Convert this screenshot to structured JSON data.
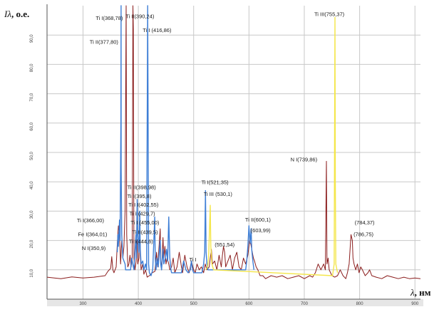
{
  "chart_data": {
    "type": "line",
    "ylabel_symbol": "Iλ",
    "ylabel_unit": ", о.е.",
    "xlabel_symbol": "λ",
    "xlabel_unit": ", нм",
    "xlim": [
      235,
      910
    ],
    "ylim": [
      0,
      100
    ],
    "x_ticks": [
      300,
      400,
      500,
      600,
      700,
      800,
      900
    ],
    "y_ticks": [
      10,
      20,
      30,
      40,
      50,
      60,
      70,
      80,
      90
    ],
    "y_tick_labels": [
      "10,0",
      "20,0",
      "30,0",
      "40,0",
      "50,0",
      "60,0",
      "70,0",
      "80,0",
      "90,0"
    ],
    "grid": true,
    "colors": {
      "background": "#ffffff",
      "grid": "#c8c8c8",
      "axis": "#555555",
      "bottom_band": "#e6e6e6"
    },
    "series": [
      {
        "color": "#8b1d1d",
        "points": [
          [
            235,
            7.5
          ],
          [
            260,
            7
          ],
          [
            280,
            7.6
          ],
          [
            300,
            7.2
          ],
          [
            320,
            7.5
          ],
          [
            340,
            8
          ],
          [
            345,
            9.5
          ],
          [
            350,
            10.5
          ],
          [
            352,
            14.5
          ],
          [
            354,
            10
          ],
          [
            356,
            9
          ],
          [
            360,
            11
          ],
          [
            362,
            19
          ],
          [
            364,
            25
          ],
          [
            366,
            22
          ],
          [
            368,
            12
          ],
          [
            370,
            20
          ],
          [
            372,
            14
          ],
          [
            374,
            18
          ],
          [
            376,
            30
          ],
          [
            377.8,
            96
          ],
          [
            378,
            100
          ],
          [
            379,
            22
          ],
          [
            381,
            11
          ],
          [
            383,
            12
          ],
          [
            385,
            15
          ],
          [
            387,
            11
          ],
          [
            389,
            14
          ],
          [
            390.2,
            100
          ],
          [
            391,
            92
          ],
          [
            392,
            14
          ],
          [
            394,
            10
          ],
          [
            396,
            13
          ],
          [
            398,
            20
          ],
          [
            399,
            12
          ],
          [
            401,
            14
          ],
          [
            402.6,
            28
          ],
          [
            403.5,
            15
          ],
          [
            405,
            10
          ],
          [
            408,
            12
          ],
          [
            410,
            8.5
          ],
          [
            413,
            10
          ],
          [
            416,
            7.5
          ],
          [
            420,
            8
          ],
          [
            425,
            9
          ],
          [
            430,
            9.5
          ],
          [
            433,
            16
          ],
          [
            435,
            11
          ],
          [
            439.5,
            24
          ],
          [
            440.5,
            13
          ],
          [
            442,
            10
          ],
          [
            444.6,
            21
          ],
          [
            446,
            14
          ],
          [
            448,
            18
          ],
          [
            450,
            12
          ],
          [
            452,
            14
          ],
          [
            455,
            12
          ],
          [
            457,
            10
          ],
          [
            460,
            11
          ],
          [
            463,
            14
          ],
          [
            466,
            9
          ],
          [
            470,
            11
          ],
          [
            474,
            16
          ],
          [
            478,
            11
          ],
          [
            480,
            9
          ],
          [
            484,
            15
          ],
          [
            488,
            11
          ],
          [
            492,
            9
          ],
          [
            496,
            13
          ],
          [
            500,
            10
          ],
          [
            503,
            9
          ],
          [
            506,
            12
          ],
          [
            510,
            10
          ],
          [
            514,
            11
          ],
          [
            518,
            9
          ],
          [
            521,
            12
          ],
          [
            524,
            10
          ],
          [
            528,
            11
          ],
          [
            532,
            17
          ],
          [
            534,
            12
          ],
          [
            538,
            13
          ],
          [
            542,
            10
          ],
          [
            546,
            15
          ],
          [
            550,
            11
          ],
          [
            552,
            15
          ],
          [
            554,
            18
          ],
          [
            556,
            16
          ],
          [
            558,
            11
          ],
          [
            562,
            13
          ],
          [
            566,
            15
          ],
          [
            570,
            10
          ],
          [
            574,
            14
          ],
          [
            578,
            16
          ],
          [
            582,
            11
          ],
          [
            586,
            10
          ],
          [
            590,
            14
          ],
          [
            594,
            12
          ],
          [
            598,
            15
          ],
          [
            600,
            18
          ],
          [
            601,
            20
          ],
          [
            603,
            19
          ],
          [
            606,
            16
          ],
          [
            608,
            14
          ],
          [
            610,
            13
          ],
          [
            613,
            11
          ],
          [
            616,
            10
          ],
          [
            620,
            8
          ],
          [
            625,
            8
          ],
          [
            630,
            7
          ],
          [
            640,
            8
          ],
          [
            650,
            7.5
          ],
          [
            660,
            8
          ],
          [
            670,
            7
          ],
          [
            680,
            7.5
          ],
          [
            690,
            8
          ],
          [
            700,
            7
          ],
          [
            710,
            8
          ],
          [
            715,
            7.5
          ],
          [
            720,
            9
          ],
          [
            725,
            12
          ],
          [
            730,
            10
          ],
          [
            735,
            12
          ],
          [
            738,
            10
          ],
          [
            739.9,
            47
          ],
          [
            741,
            12
          ],
          [
            743,
            14
          ],
          [
            745,
            10
          ],
          [
            750,
            8
          ],
          [
            755,
            7.5
          ],
          [
            760,
            8
          ],
          [
            765,
            10
          ],
          [
            770,
            8
          ],
          [
            775,
            7
          ],
          [
            778,
            9
          ],
          [
            781,
            12
          ],
          [
            784.4,
            22
          ],
          [
            786.8,
            20
          ],
          [
            788,
            14
          ],
          [
            790,
            12
          ],
          [
            793,
            10
          ],
          [
            796,
            12
          ],
          [
            799,
            9
          ],
          [
            802,
            11
          ],
          [
            805,
            10
          ],
          [
            810,
            8
          ],
          [
            815,
            9
          ],
          [
            818,
            10
          ],
          [
            822,
            8
          ],
          [
            830,
            7.5
          ],
          [
            840,
            7
          ],
          [
            850,
            8
          ],
          [
            860,
            7.5
          ],
          [
            870,
            7
          ],
          [
            880,
            7.5
          ],
          [
            890,
            7
          ],
          [
            900,
            7.2
          ],
          [
            910,
            7
          ]
        ]
      },
      {
        "color": "#3f7fd6",
        "points": [
          [
            362,
            16
          ],
          [
            363,
            22
          ],
          [
            364,
            18
          ],
          [
            366,
            27
          ],
          [
            367,
            20
          ],
          [
            368.5,
            60
          ],
          [
            368.8,
            100
          ],
          [
            369,
            45
          ],
          [
            370,
            22
          ],
          [
            371,
            18
          ],
          [
            372,
            14
          ],
          [
            374,
            13
          ],
          [
            376,
            12
          ],
          [
            377,
            10
          ],
          [
            386,
            10
          ],
          [
            388,
            14
          ],
          [
            390,
            12
          ],
          [
            392,
            10
          ],
          [
            395.8,
            22
          ],
          [
            396.5,
            14
          ],
          [
            398,
            34
          ],
          [
            399,
            22
          ],
          [
            401,
            16
          ],
          [
            402.6,
            30
          ],
          [
            403.5,
            17
          ],
          [
            405,
            12
          ],
          [
            408,
            13
          ],
          [
            410,
            10
          ],
          [
            413,
            12
          ],
          [
            415,
            10
          ],
          [
            416.9,
            100
          ],
          [
            417.5,
            70
          ],
          [
            418.5,
            12
          ],
          [
            420,
            9
          ],
          [
            423,
            8
          ],
          [
            426,
            10
          ],
          [
            429.7,
            28
          ],
          [
            430.5,
            14
          ],
          [
            432,
            10
          ],
          [
            434,
            14
          ],
          [
            436,
            11
          ],
          [
            439.5,
            20
          ],
          [
            440.5,
            12
          ],
          [
            442,
            10
          ],
          [
            444.6,
            17
          ],
          [
            446,
            12
          ],
          [
            449,
            14
          ],
          [
            451,
            17
          ],
          [
            453,
            13
          ],
          [
            455,
            28
          ],
          [
            456,
            20
          ],
          [
            457,
            14
          ],
          [
            459,
            10
          ],
          [
            460,
            9
          ],
          [
            470,
            9
          ],
          [
            478,
            9
          ],
          [
            482,
            13
          ],
          [
            486,
            10
          ],
          [
            490,
            9
          ],
          [
            494,
            10
          ],
          [
            496,
            13
          ],
          [
            498,
            10
          ],
          [
            500,
            9
          ],
          [
            510,
            9
          ],
          [
            515,
            9
          ],
          [
            518,
            12
          ],
          [
            520,
            16
          ],
          [
            521.4,
            37
          ],
          [
            522.5,
            16
          ],
          [
            524,
            12
          ],
          [
            526,
            10
          ],
          [
            594,
            10
          ],
          [
            596,
            13
          ],
          [
            598,
            18
          ],
          [
            600,
            25
          ],
          [
            601,
            22
          ],
          [
            602,
            19
          ],
          [
            603.9,
            24
          ],
          [
            605,
            17
          ],
          [
            607,
            13
          ],
          [
            609,
            10
          ]
        ]
      },
      {
        "color": "#f4e64a",
        "points": [
          [
            522,
            10
          ],
          [
            525,
            11
          ],
          [
            527,
            14
          ],
          [
            530,
            32
          ],
          [
            531,
            18
          ],
          [
            533,
            12
          ],
          [
            536,
            10
          ],
          [
            751,
            8
          ],
          [
            754,
            12
          ],
          [
            755.4,
            96
          ],
          [
            756,
            40
          ],
          [
            757,
            12
          ],
          [
            760,
            9
          ]
        ]
      }
    ],
    "annotations": [
      {
        "text": "Ti I(368,78)",
        "x": 323,
        "y": 95.2
      },
      {
        "text": "Ti II(390,24)",
        "x": 377,
        "y": 95.7
      },
      {
        "text": "Ti II(377,80)",
        "x": 312,
        "y": 87
      },
      {
        "text": "Ti I (416,86)",
        "x": 408,
        "y": 91
      },
      {
        "text": "Ti III(755,37)",
        "x": 718,
        "y": 96.5
      },
      {
        "text": "N I(739,86)",
        "x": 675,
        "y": 47
      },
      {
        "text": "Ti I(521,35)",
        "x": 514,
        "y": 39.2
      },
      {
        "text": "Ti III (530,1)",
        "x": 518,
        "y": 35.2
      },
      {
        "text": "Ti II(398,98)",
        "x": 380,
        "y": 37.5
      },
      {
        "text": "Ti I(395,8)",
        "x": 380,
        "y": 34.5
      },
      {
        "text": "Ti I  I(402,55)",
        "x": 382,
        "y": 31.5
      },
      {
        "text": "Ti I (429,7)",
        "x": 384,
        "y": 28.5
      },
      {
        "text": "Ti I (455,00)",
        "x": 386,
        "y": 25.5
      },
      {
        "text": "Ti II(439,5)",
        "x": 389,
        "y": 22.2
      },
      {
        "text": "Ti I(444,6)",
        "x": 383,
        "y": 19
      },
      {
        "text": "Ti I(366,00)",
        "x": 289,
        "y": 26.2
      },
      {
        "text": "Fe I(364,01)",
        "x": 291,
        "y": 21.5
      },
      {
        "text": "N I(350,9)",
        "x": 298,
        "y": 16.8
      },
      {
        "text": "Ti I",
        "x": 492,
        "y": 12.9
      },
      {
        "text": "(551,54)",
        "x": 538,
        "y": 18
      },
      {
        "text": "Ti II(600,1)",
        "x": 593,
        "y": 26.5
      },
      {
        "text": "(603,99)",
        "x": 603,
        "y": 22.8
      },
      {
        "text": "(784,37)",
        "x": 791,
        "y": 25.5
      },
      {
        "text": "(786,75)",
        "x": 789,
        "y": 21.5
      }
    ]
  }
}
